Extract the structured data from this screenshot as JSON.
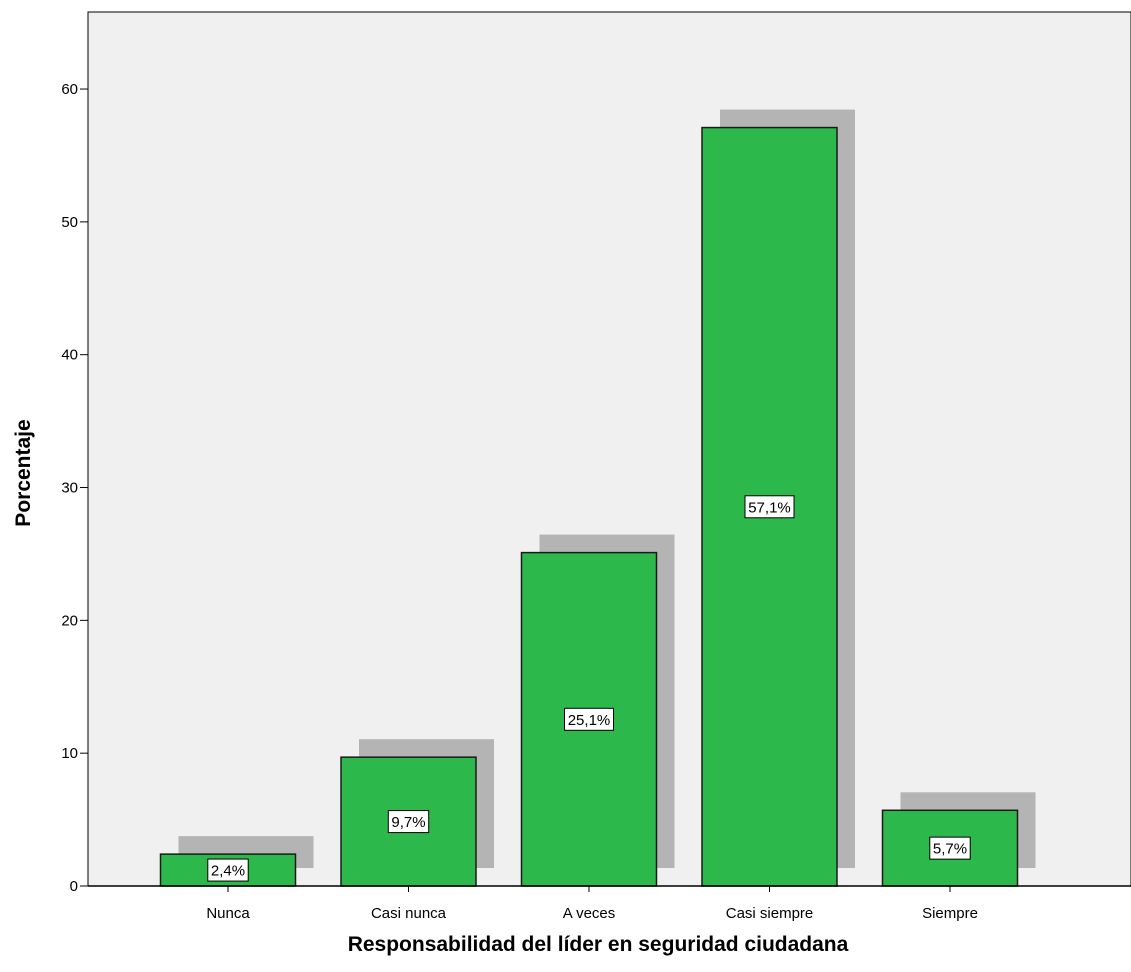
{
  "chart_data": {
    "type": "bar",
    "title": "",
    "xlabel": "Responsabilidad del líder en seguridad ciudadana",
    "ylabel": "Porcentaje",
    "categories": [
      "Nunca",
      "Casi nunca",
      "A veces",
      "Casi siempre",
      "Siempre"
    ],
    "values": [
      2.4,
      9.7,
      25.1,
      57.1,
      5.7
    ],
    "data_labels": [
      "2,4%",
      "9,7%",
      "25,1%",
      "57,1%",
      "5,7%"
    ],
    "yticks": [
      0,
      10,
      20,
      30,
      40,
      50,
      60
    ],
    "ylim": [
      0,
      65.8
    ],
    "grid": false,
    "legend": "none",
    "bar_shadow": true,
    "colors": {
      "bar_fill": "#2db84b",
      "bar_stroke": "#1a1a1a",
      "shadow": "#b4b4b4",
      "plot_background": "#f0f0f0",
      "page_background": "#ffffff",
      "label_box": "#ffffff"
    }
  }
}
